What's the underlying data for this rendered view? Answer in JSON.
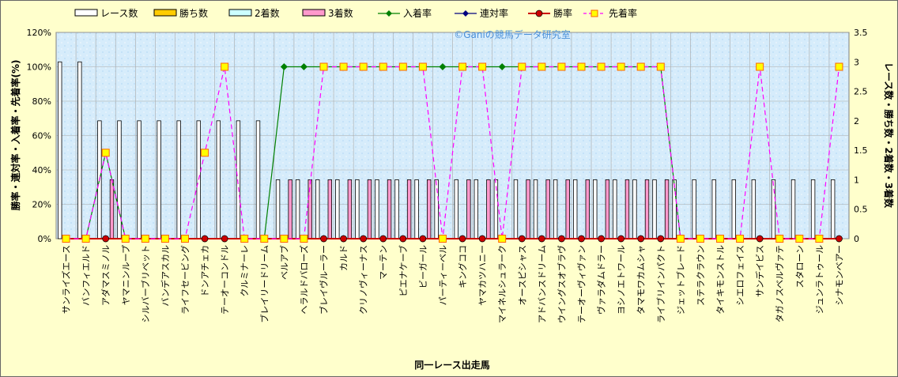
{
  "chart_data": {
    "type": "bar-line-combo",
    "watermark": "©Ganiの競馬データ研究室",
    "xlabel": "同一レース出走馬",
    "ylabel_left": "勝率・連対率・入着率・先着率(%)",
    "ylabel_right": "レース数・勝ち数・2着数・3着数",
    "ylim_left": [
      0,
      120
    ],
    "ylim_right": [
      0,
      3.5
    ],
    "yticks_left": [
      "0%",
      "20%",
      "40%",
      "60%",
      "80%",
      "100%",
      "120%"
    ],
    "yticks_right": [
      "0",
      "0.5",
      "1",
      "1.5",
      "2",
      "2.5",
      "3",
      "3.5"
    ],
    "legend": [
      "レース数",
      "勝ち数",
      "2着数",
      "3着数",
      "入着率",
      "連対率",
      "勝率",
      "先着率"
    ],
    "colors": {
      "races": "#ffffff",
      "wins": "#ffcc00",
      "seconds": "#ccffff",
      "thirds": "#ff99cc",
      "place_rate": "#008000",
      "rentai_rate": "#000080",
      "win_rate": "#cc0000",
      "sentyaku_rate": "#ff00ff",
      "sentyaku_marker": "#ffff00"
    },
    "categories": [
      "サンライズエース",
      "バンフィエルド",
      "アダマスミノル",
      "ヤマニンループ",
      "シルバーブリベット",
      "バンデアスカル",
      "ライフセービング",
      "ドンアチェカ",
      "テーオーコンドル",
      "クルミナーレ",
      "ブレイリードリーム",
      "ベルアブ",
      "ヘラルドバローズ",
      "ブレイヴルーラー",
      "カルド",
      "クリノヴィーナス",
      "マーテン",
      "ピエナケーブ",
      "ビーガール",
      "パーティーベル",
      "キングココ",
      "ヤマカツハニー",
      "マイネルシュラーク",
      "オースピシャス",
      "アドバンスドリーム",
      "ウイングスオブラヴ",
      "テーオーヴィヴァン",
      "ヴァラダムドラー",
      "ヨシノエトワール",
      "タマモワカムシャ",
      "ライブリインパクト",
      "ジェットブレード",
      "ステラクラウン",
      "タイキモンストル",
      "シエロフェイス",
      "サンデイビス",
      "タガノスベルヴァテ",
      "スタローン",
      "ジュンラトゥール",
      "シナモンベアー"
    ],
    "series": [
      {
        "name": "レース数",
        "axis": "right",
        "kind": "bar",
        "values": [
          3,
          3,
          2,
          2,
          2,
          2,
          2,
          2,
          2,
          2,
          2,
          1,
          1,
          1,
          1,
          1,
          1,
          1,
          1,
          1,
          1,
          1,
          1,
          1,
          1,
          1,
          1,
          1,
          1,
          1,
          1,
          1,
          1,
          1,
          1,
          1,
          1,
          1,
          1,
          1
        ]
      },
      {
        "name": "勝ち数",
        "axis": "right",
        "kind": "bar",
        "values": [
          0,
          0,
          0,
          0,
          0,
          0,
          0,
          0,
          0,
          0,
          0,
          0,
          0,
          0,
          0,
          0,
          0,
          0,
          0,
          0,
          0,
          0,
          0,
          0,
          0,
          0,
          0,
          0,
          0,
          0,
          0,
          0,
          0,
          0,
          0,
          0,
          0,
          0,
          0,
          0
        ]
      },
      {
        "name": "2着数",
        "axis": "right",
        "kind": "bar",
        "values": [
          0,
          0,
          0,
          0,
          0,
          0,
          0,
          0,
          0,
          0,
          0,
          0,
          0,
          0,
          0,
          0,
          0,
          0,
          0,
          0,
          0,
          0,
          0,
          0,
          0,
          0,
          0,
          0,
          0,
          0,
          0,
          0,
          0,
          0,
          0,
          0,
          0,
          0,
          0,
          0
        ]
      },
      {
        "name": "3着数",
        "axis": "right",
        "kind": "bar",
        "values": [
          0,
          0,
          1,
          0,
          0,
          0,
          0,
          0,
          0,
          0,
          0,
          1,
          1,
          1,
          1,
          1,
          1,
          1,
          1,
          0,
          1,
          1,
          0,
          1,
          1,
          1,
          1,
          1,
          1,
          1,
          1,
          0,
          0,
          0,
          0,
          0,
          0,
          0,
          0,
          0
        ]
      },
      {
        "name": "入着率",
        "axis": "left",
        "kind": "line",
        "values": [
          0,
          0,
          50,
          0,
          0,
          0,
          0,
          0,
          0,
          0,
          0,
          100,
          100,
          100,
          100,
          100,
          100,
          100,
          100,
          100,
          100,
          100,
          100,
          100,
          100,
          100,
          100,
          100,
          100,
          100,
          100,
          0,
          0,
          0,
          0,
          0,
          0,
          0,
          0,
          0
        ]
      },
      {
        "name": "連対率",
        "axis": "left",
        "kind": "line",
        "values": [
          0,
          0,
          0,
          0,
          0,
          0,
          0,
          0,
          0,
          0,
          0,
          0,
          0,
          0,
          0,
          0,
          0,
          0,
          0,
          0,
          0,
          0,
          0,
          0,
          0,
          0,
          0,
          0,
          0,
          0,
          0,
          0,
          0,
          0,
          0,
          0,
          0,
          0,
          0,
          0
        ]
      },
      {
        "name": "勝率",
        "axis": "left",
        "kind": "line",
        "values": [
          0,
          0,
          0,
          0,
          0,
          0,
          0,
          0,
          0,
          0,
          0,
          0,
          0,
          0,
          0,
          0,
          0,
          0,
          0,
          0,
          0,
          0,
          0,
          0,
          0,
          0,
          0,
          0,
          0,
          0,
          0,
          0,
          0,
          0,
          0,
          0,
          0,
          0,
          0,
          0
        ]
      },
      {
        "name": "先着率",
        "axis": "left",
        "kind": "line",
        "values": [
          0,
          0,
          50,
          0,
          0,
          0,
          0,
          50,
          100,
          0,
          0,
          0,
          0,
          100,
          100,
          100,
          100,
          100,
          100,
          0,
          100,
          100,
          0,
          100,
          100,
          100,
          100,
          100,
          100,
          100,
          100,
          0,
          0,
          0,
          0,
          100,
          0,
          0,
          0,
          100
        ]
      }
    ]
  }
}
